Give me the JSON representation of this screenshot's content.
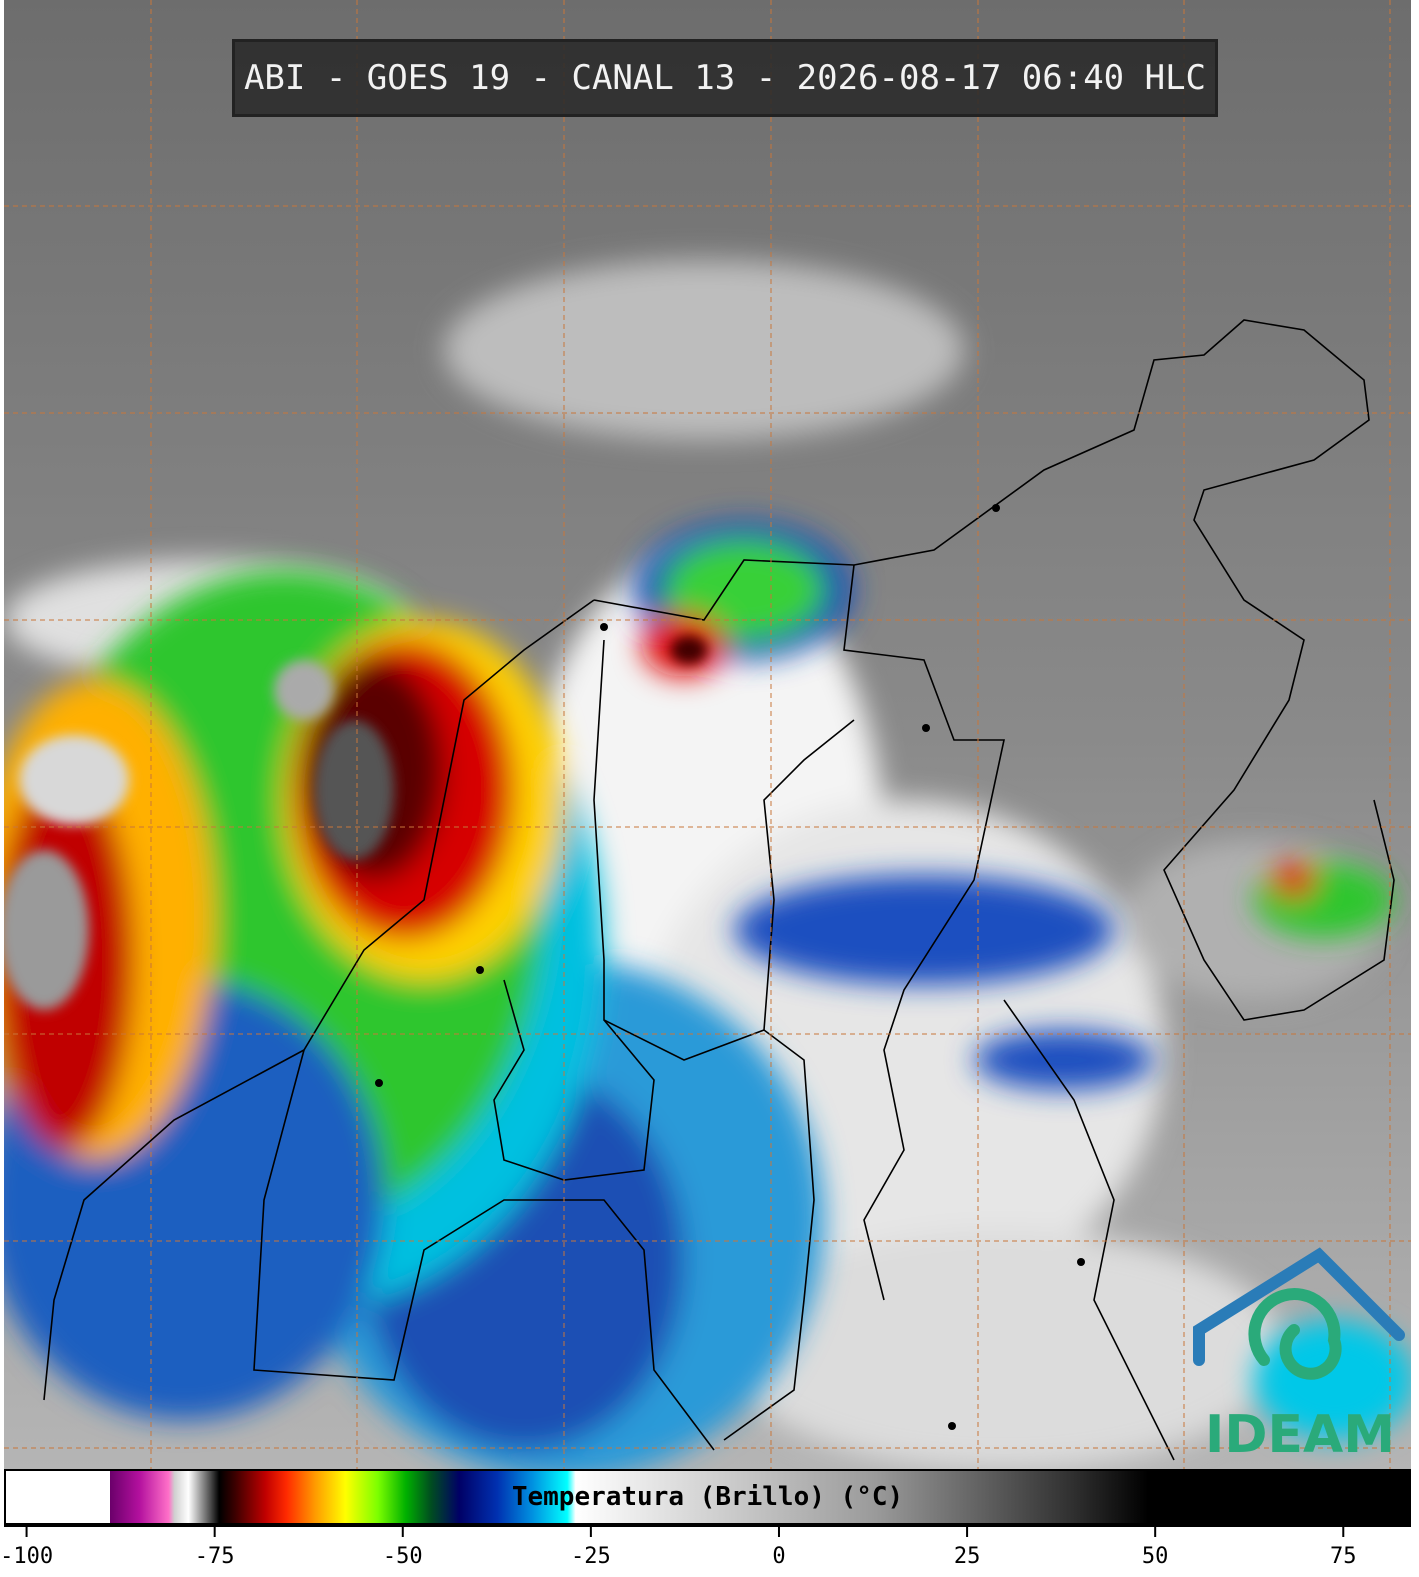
{
  "header": {
    "title": "ABI - GOES 19 - CANAL 13 - 2026-08-17 06:40 HLC"
  },
  "logo": {
    "text": "IDEAM"
  },
  "colorbar": {
    "label": "Temperatura (Brillo) (°C)",
    "lim": [
      -103,
      84
    ],
    "ticks": [
      -100,
      -75,
      -50,
      -25,
      0,
      25,
      50,
      75
    ]
  }
}
